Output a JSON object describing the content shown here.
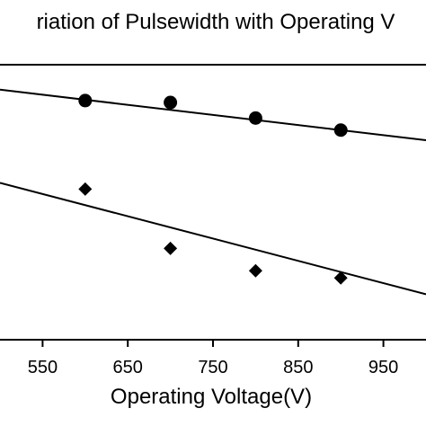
{
  "chart_data": {
    "type": "scatter",
    "title": "riation of Pulsewidth with Operating V",
    "xlabel": "Operating Voltage(V)",
    "ylabel": "",
    "xlim": [
      500,
      1000
    ],
    "ylim": [
      0,
      1
    ],
    "x_ticks": [
      550,
      650,
      750,
      850,
      950
    ],
    "x_tick_labels": [
      "550",
      "650",
      "750",
      "850",
      "950"
    ],
    "grid": false,
    "legend": "none",
    "series": [
      {
        "marker": "circle",
        "color": "#000000",
        "x": [
          600,
          700,
          800,
          900
        ],
        "y": [
          0.872,
          0.865,
          0.808,
          0.764
        ],
        "fit_line": {
          "x": [
            500,
            1000
          ],
          "y": [
            0.912,
            0.727
          ]
        }
      },
      {
        "marker": "diamond",
        "color": "#000000",
        "x": [
          600,
          700,
          800,
          900
        ],
        "y": [
          0.548,
          0.331,
          0.249,
          0.223
        ],
        "fit_line": {
          "x": [
            500,
            1000
          ],
          "y": [
            0.571,
            0.163
          ]
        }
      }
    ]
  }
}
